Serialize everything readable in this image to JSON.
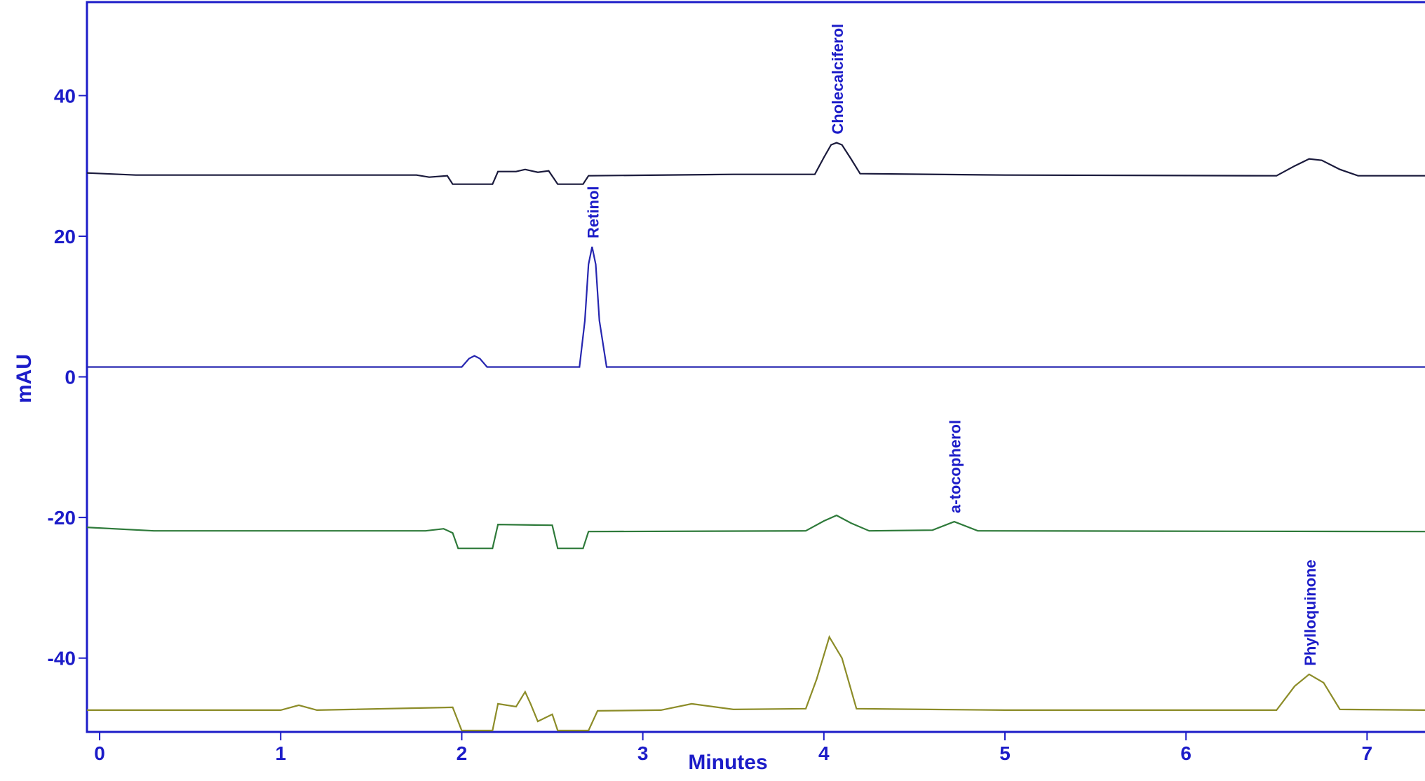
{
  "chart_data": {
    "type": "line",
    "xlabel": "Minutes",
    "ylabel": "mAU",
    "xlim": [
      -0.07,
      7.32
    ],
    "ylim": [
      -50.5,
      53.3
    ],
    "xticks": [
      0,
      1,
      2,
      3,
      4,
      5,
      6,
      7
    ],
    "yticks": [
      -40,
      -20,
      0,
      20,
      40
    ],
    "axis_color": "#1c1cc8",
    "series": [
      {
        "color": "#1a1a3c",
        "x": [
          -0.07,
          0.2,
          1.75,
          1.82,
          1.92,
          1.95,
          2.17,
          2.2,
          2.3,
          2.35,
          2.42,
          2.48,
          2.53,
          2.67,
          2.7,
          3.5,
          3.95,
          4.0,
          4.04,
          4.07,
          4.1,
          4.15,
          4.2,
          5.0,
          6.5,
          6.6,
          6.68,
          6.75,
          6.85,
          6.95,
          7.32
        ],
        "values": [
          29,
          28.7,
          28.7,
          28.4,
          28.6,
          27.4,
          27.4,
          29.2,
          29.2,
          29.5,
          29.1,
          29.3,
          27.4,
          27.4,
          28.6,
          28.8,
          28.8,
          31.2,
          33,
          33.3,
          33,
          31,
          28.9,
          28.7,
          28.6,
          30,
          31,
          30.8,
          29.5,
          28.6,
          28.6
        ],
        "point_labels": [
          null,
          null,
          null,
          null,
          null,
          null,
          null,
          null,
          null,
          null,
          null,
          null,
          null,
          null,
          null,
          null,
          null,
          null,
          null,
          "Cholecalciferol",
          null,
          null,
          null,
          null,
          null,
          null,
          null,
          null,
          null,
          null,
          null
        ]
      },
      {
        "color": "#2626b0",
        "x": [
          -0.07,
          2.0,
          2.04,
          2.07,
          2.1,
          2.14,
          2.65,
          2.68,
          2.7,
          2.72,
          2.74,
          2.76,
          2.8,
          7.32
        ],
        "values": [
          1.4,
          1.4,
          2.6,
          3.0,
          2.6,
          1.4,
          1.4,
          8,
          16,
          18.5,
          16,
          8,
          1.4,
          1.4
        ],
        "point_labels": [
          null,
          null,
          null,
          null,
          null,
          null,
          null,
          null,
          null,
          "Retinol",
          null,
          null,
          null,
          null
        ]
      },
      {
        "color": "#2e7a3a",
        "x": [
          -0.07,
          0.3,
          1.8,
          1.9,
          1.95,
          1.98,
          2.17,
          2.2,
          2.5,
          2.53,
          2.67,
          2.7,
          3.9,
          4.0,
          4.07,
          4.15,
          4.25,
          4.6,
          4.72,
          4.85,
          7.32
        ],
        "values": [
          -21.4,
          -21.9,
          -21.9,
          -21.6,
          -22.2,
          -24.4,
          -24.4,
          -21,
          -21.1,
          -24.4,
          -24.4,
          -22,
          -21.9,
          -20.5,
          -19.7,
          -20.8,
          -21.9,
          -21.8,
          -20.6,
          -21.9,
          -22
        ],
        "point_labels": [
          null,
          null,
          null,
          null,
          null,
          null,
          null,
          null,
          null,
          null,
          null,
          null,
          null,
          null,
          null,
          null,
          null,
          null,
          "a-tocopherol",
          null,
          null
        ]
      },
      {
        "color": "#8c8c28",
        "x": [
          -0.07,
          1.0,
          1.1,
          1.2,
          1.95,
          2.0,
          2.17,
          2.2,
          2.3,
          2.35,
          2.38,
          2.42,
          2.5,
          2.53,
          2.7,
          2.75,
          3.1,
          3.27,
          3.5,
          3.9,
          3.96,
          4.03,
          4.1,
          4.18,
          5.0,
          6.5,
          6.6,
          6.68,
          6.76,
          6.85,
          7.32
        ],
        "values": [
          -47.4,
          -47.4,
          -46.7,
          -47.4,
          -47,
          -50.3,
          -50.3,
          -46.5,
          -46.9,
          -44.8,
          -46.5,
          -49,
          -48,
          -50.3,
          -50.3,
          -47.5,
          -47.4,
          -46.5,
          -47.3,
          -47.2,
          -43,
          -37,
          -40,
          -47.2,
          -47.4,
          -47.4,
          -44,
          -42.3,
          -43.5,
          -47.3,
          -47.4
        ],
        "point_labels": [
          null,
          null,
          null,
          null,
          null,
          null,
          null,
          null,
          null,
          null,
          null,
          null,
          null,
          null,
          null,
          null,
          null,
          null,
          null,
          null,
          null,
          null,
          null,
          null,
          null,
          null,
          null,
          "Phylloquinone",
          null,
          null,
          null
        ]
      }
    ]
  }
}
